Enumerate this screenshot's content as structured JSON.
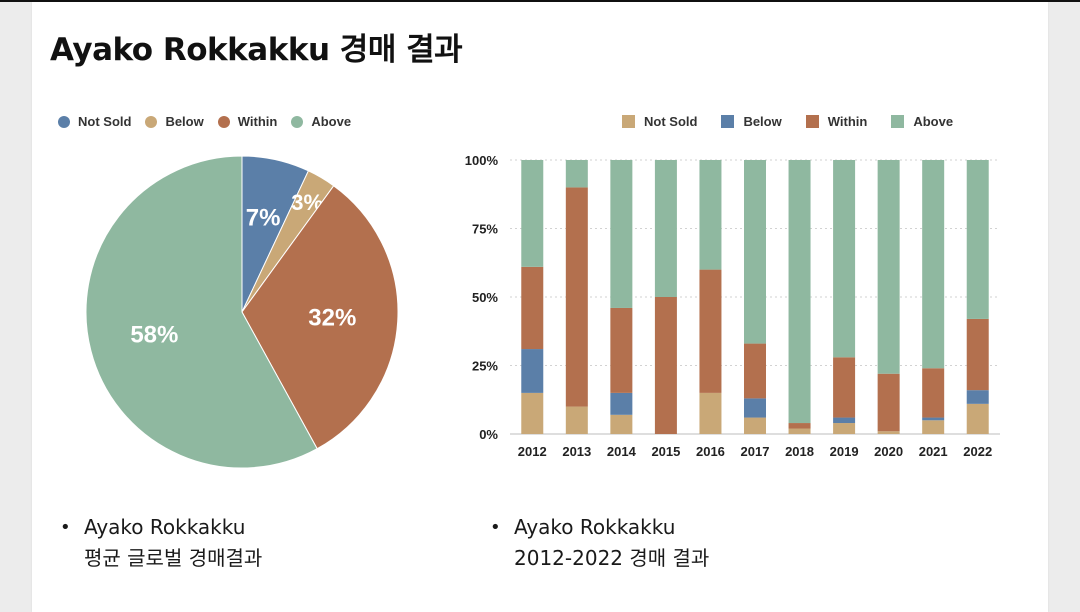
{
  "title": "Ayako Rokkakku 경매 결과",
  "colors": {
    "not_sold_pie": "#5b7fa8",
    "below_pie": "#c9a877",
    "within": "#b3704e",
    "above": "#8fb8a0",
    "not_sold_bar": "#c9a877",
    "below_bar": "#5b7fa8"
  },
  "pie_legend": [
    "Not Sold",
    "Below",
    "Within",
    "Above"
  ],
  "bar_legend": [
    "Not Sold",
    "Below",
    "Within",
    "Above"
  ],
  "bullets": [
    {
      "line1": "Ayako Rokkakku",
      "line2": "평균 글로벌 경매결과"
    },
    {
      "line1": "Ayako Rokkakku",
      "line2": "2012-2022 경매 결과"
    }
  ],
  "chart_data": [
    {
      "type": "pie",
      "labels": [
        "Not Sold",
        "Below",
        "Within",
        "Above"
      ],
      "values": [
        7,
        3,
        32,
        58
      ],
      "value_labels": [
        "7%",
        "3%",
        "32%",
        "58%"
      ],
      "legend_position": "top"
    },
    {
      "type": "bar",
      "stacked": true,
      "percent": true,
      "categories": [
        "2012",
        "2013",
        "2014",
        "2015",
        "2016",
        "2017",
        "2018",
        "2019",
        "2020",
        "2021",
        "2022"
      ],
      "series": [
        {
          "name": "Not Sold",
          "values": [
            15,
            10,
            7,
            0,
            15,
            6,
            2,
            4,
            1,
            5,
            11
          ]
        },
        {
          "name": "Below",
          "values": [
            16,
            0,
            8,
            0,
            0,
            7,
            0,
            2,
            0,
            1,
            5
          ]
        },
        {
          "name": "Within",
          "values": [
            30,
            80,
            31,
            50,
            45,
            20,
            2,
            22,
            21,
            18,
            26
          ]
        },
        {
          "name": "Above",
          "values": [
            39,
            10,
            54,
            50,
            40,
            67,
            96,
            72,
            78,
            76,
            58
          ]
        }
      ],
      "yticks": [
        "0%",
        "25%",
        "50%",
        "75%",
        "100%"
      ],
      "ylim": [
        0,
        100
      ],
      "grid": true,
      "legend_position": "top-right"
    }
  ]
}
